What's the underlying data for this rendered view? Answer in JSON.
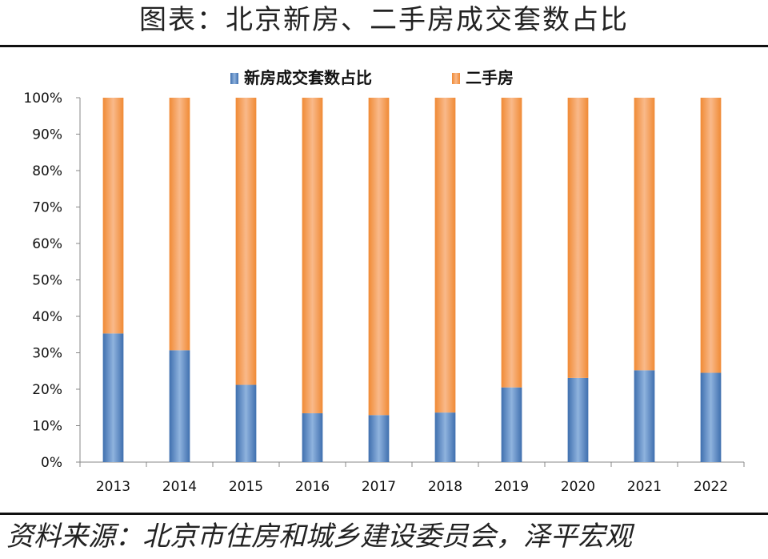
{
  "header": {
    "title": "图表：北京新房、二手房成交套数占比"
  },
  "footer": {
    "source": "资料来源：北京市住房和城乡建设委员会，泽平宏观"
  },
  "colors": {
    "new_home": "#4a7ebb",
    "second_hand": "#f79646",
    "axis": "#888888",
    "text": "#111111"
  },
  "chart_data": {
    "type": "bar",
    "stacked": true,
    "title": "",
    "xlabel": "",
    "ylabel": "",
    "ylim": [
      0,
      100
    ],
    "y_ticks": [
      "0%",
      "10%",
      "20%",
      "30%",
      "40%",
      "50%",
      "60%",
      "70%",
      "80%",
      "90%",
      "100%"
    ],
    "categories": [
      "2013",
      "2014",
      "2015",
      "2016",
      "2017",
      "2018",
      "2019",
      "2020",
      "2021",
      "2022"
    ],
    "series": [
      {
        "name": "新房成交套数占比",
        "values": [
          35.3,
          30.7,
          21.2,
          13.4,
          12.9,
          13.6,
          20.5,
          23.1,
          25.2,
          24.5
        ]
      },
      {
        "name": "二手房",
        "values": [
          64.7,
          69.3,
          78.8,
          86.6,
          87.1,
          86.4,
          79.5,
          76.9,
          74.8,
          75.5
        ]
      }
    ],
    "legend_position": "top-center"
  }
}
